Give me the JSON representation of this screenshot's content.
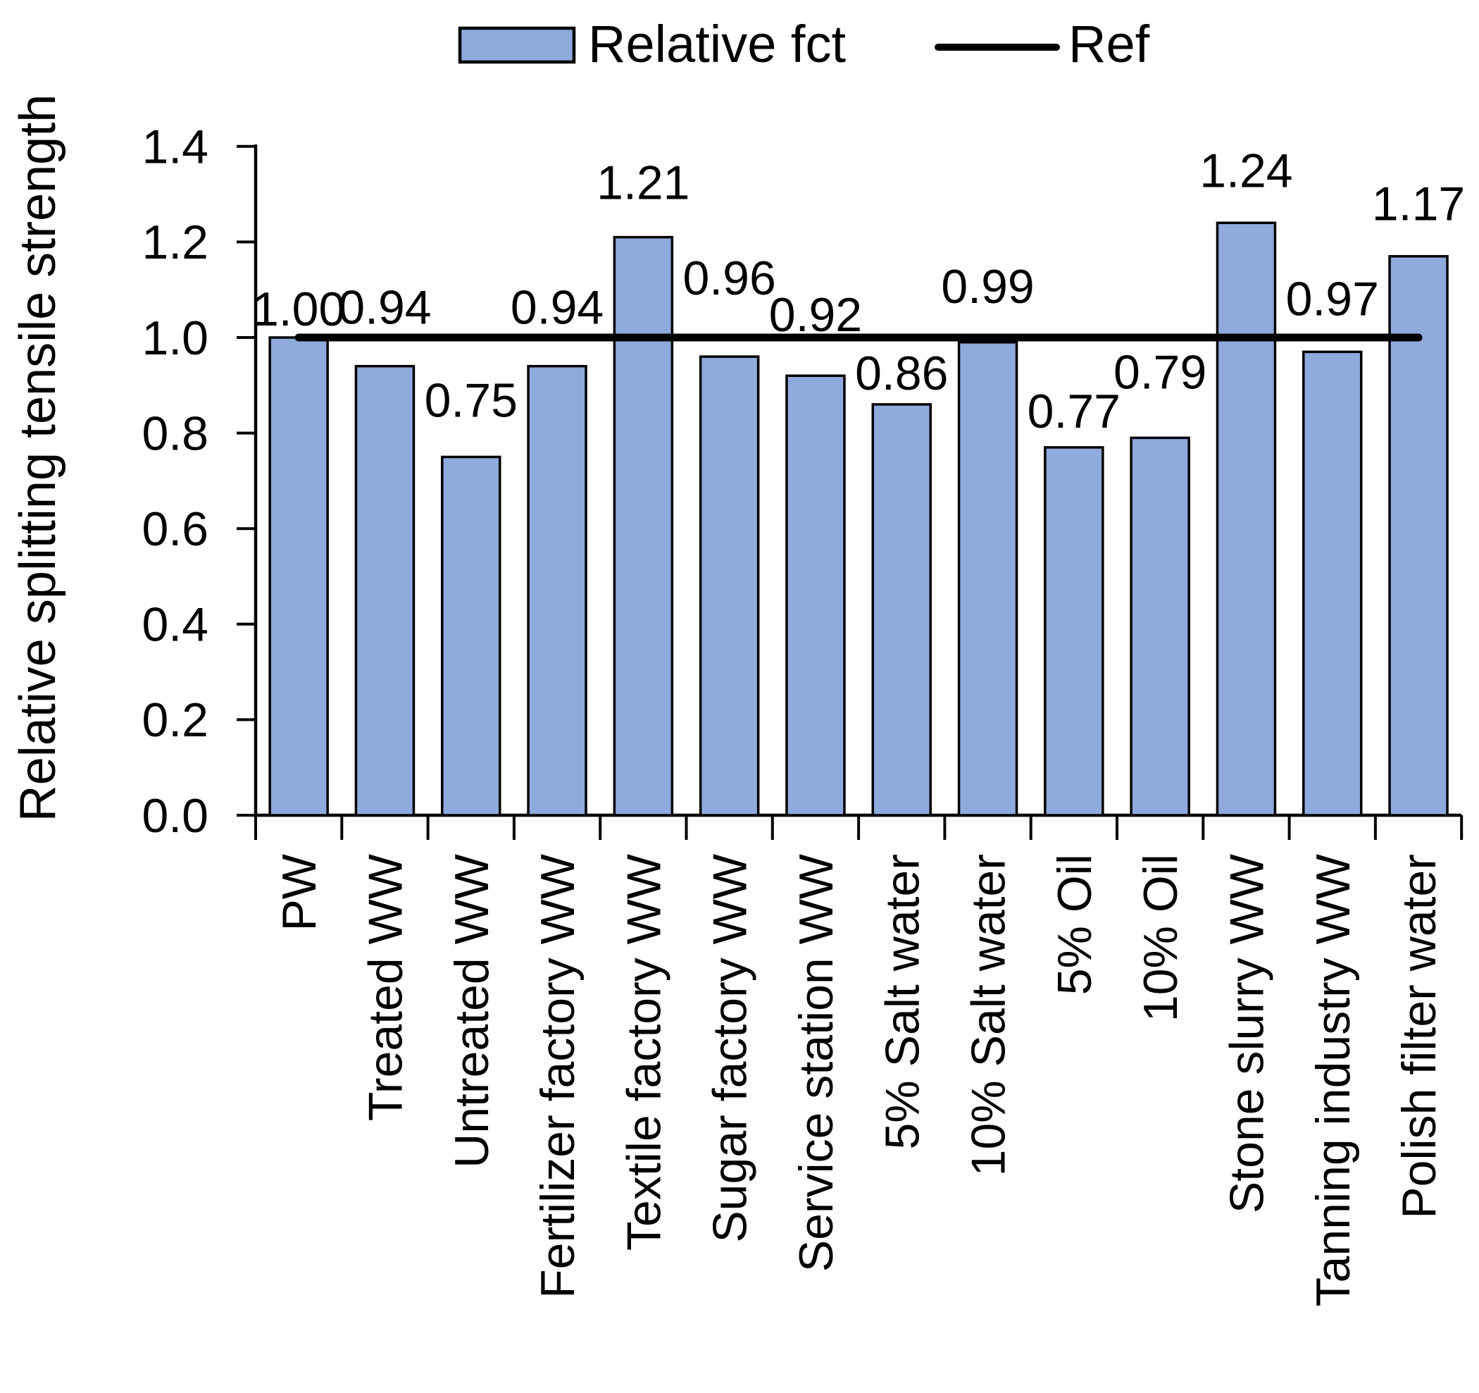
{
  "chart_data": {
    "type": "bar",
    "title": "",
    "xlabel": "",
    "ylabel": "Relative splitting tensile strength",
    "categories": [
      "PW",
      "Treated WW",
      "Untreated WW",
      "Fertilizer factory WW",
      "Textile factory WW",
      "Sugar factory WW",
      "Service station WW",
      "5% Salt water",
      "10% Salt water",
      "5% Oil",
      "10% Oil",
      "Stone slurry WW",
      "Tanning industry WW",
      "Polish filter water"
    ],
    "series": [
      {
        "name": "Relative fct",
        "type": "bar",
        "values": [
          1.0,
          0.94,
          0.75,
          0.94,
          1.21,
          0.96,
          0.92,
          0.86,
          0.99,
          0.77,
          0.79,
          1.24,
          0.97,
          1.17
        ]
      },
      {
        "name": "Ref",
        "type": "line",
        "ref_value": 1.0
      }
    ],
    "value_labels": [
      "1.00",
      "0.94",
      "0.75",
      "0.94",
      "1.21",
      "0.96",
      "0.92",
      "0.86",
      "0.99",
      "0.77",
      "0.79",
      "1.24",
      "0.97",
      "1.17"
    ],
    "ylim": [
      0.0,
      1.4
    ],
    "ytick_step": 0.2,
    "ytick_labels": [
      "0.0",
      "0.2",
      "0.4",
      "0.6",
      "0.8",
      "1.0",
      "1.2",
      "1.4"
    ],
    "grid": false,
    "legend_position": "top",
    "colors": {
      "bar_fill": "#8FAADC",
      "bar_border": "#000000",
      "ref_line": "#000000",
      "axis": "#000000",
      "text": "#000000",
      "background": "#FFFFFF"
    },
    "layout": {
      "label_gaps": [
        17,
        60,
        57,
        60,
        54,
        88,
        63,
        21,
        56,
        28,
        70,
        51,
        52,
        51
      ]
    }
  }
}
